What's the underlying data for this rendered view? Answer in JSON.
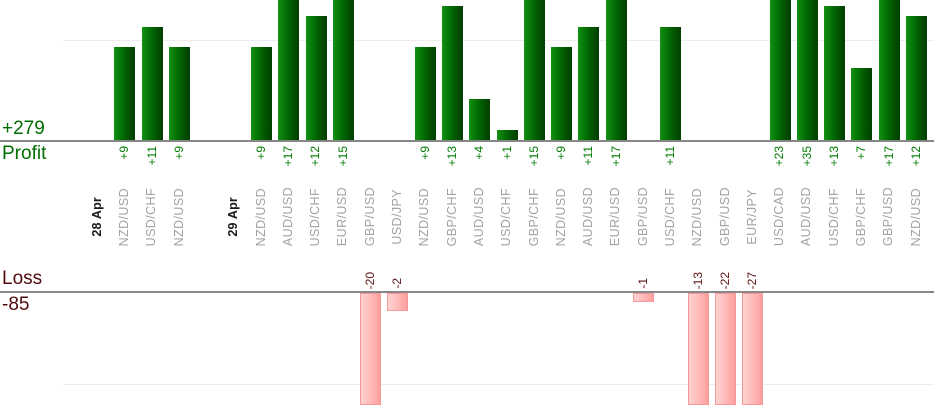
{
  "chart_data": {
    "type": "bar",
    "description": "Daily trade profit/loss bar chart with green profit bars above a zero axis and pink loss bars below a separate loss axis",
    "profit": {
      "label": "Profit",
      "total_label": "+279",
      "total": 279,
      "axis_color": "#878787",
      "bar_color": "#047204",
      "value_color": "#007d00",
      "gridline_value": 10
    },
    "loss": {
      "label": "Loss",
      "total_label": "-85",
      "total": -85,
      "axis_color": "#878787",
      "bar_color": "#ffb0b0",
      "value_color": "#5d1313",
      "gridline_value": -10
    },
    "grid": true,
    "legend": "none",
    "colors": {
      "profit_text": "#006e00",
      "loss_text": "#4f0c0c",
      "symbol_label": "#a2a2a2",
      "date_label": "#1a1a1a",
      "gridline": "#ededed"
    },
    "slots": [
      {
        "kind": "date",
        "label": "28 Apr",
        "value": null
      },
      {
        "kind": "trade",
        "label": "NZD/USD",
        "value": 9
      },
      {
        "kind": "trade",
        "label": "USD/CHF",
        "value": 11
      },
      {
        "kind": "trade",
        "label": "NZD/USD",
        "value": 9
      },
      {
        "kind": "empty",
        "label": "",
        "value": null
      },
      {
        "kind": "date",
        "label": "29 Apr",
        "value": null
      },
      {
        "kind": "trade",
        "label": "NZD/USD",
        "value": 9
      },
      {
        "kind": "trade",
        "label": "AUD/USD",
        "value": 17
      },
      {
        "kind": "trade",
        "label": "USD/CHF",
        "value": 12
      },
      {
        "kind": "trade",
        "label": "EUR/USD",
        "value": 15
      },
      {
        "kind": "trade",
        "label": "GBP/USD",
        "value": -20
      },
      {
        "kind": "trade",
        "label": "USD/JPY",
        "value": -2
      },
      {
        "kind": "trade",
        "label": "NZD/USD",
        "value": 9
      },
      {
        "kind": "trade",
        "label": "GBP/CHF",
        "value": 13
      },
      {
        "kind": "trade",
        "label": "AUD/USD",
        "value": 4
      },
      {
        "kind": "trade",
        "label": "USD/CHF",
        "value": 1
      },
      {
        "kind": "trade",
        "label": "GBP/CHF",
        "value": 15
      },
      {
        "kind": "trade",
        "label": "NZD/USD",
        "value": 9
      },
      {
        "kind": "trade",
        "label": "AUD/USD",
        "value": 11
      },
      {
        "kind": "trade",
        "label": "EUR/USD",
        "value": 17
      },
      {
        "kind": "trade",
        "label": "GBP/USD",
        "value": -1
      },
      {
        "kind": "trade",
        "label": "USD/CHF",
        "value": 11
      },
      {
        "kind": "trade",
        "label": "NZD/USD",
        "value": -13
      },
      {
        "kind": "trade",
        "label": "GBP/USD",
        "value": -22
      },
      {
        "kind": "trade",
        "label": "EUR/JPY",
        "value": -27
      },
      {
        "kind": "trade",
        "label": "USD/CAD",
        "value": 23
      },
      {
        "kind": "trade",
        "label": "AUD/USD",
        "value": 35
      },
      {
        "kind": "trade",
        "label": "USD/CHF",
        "value": 13
      },
      {
        "kind": "trade",
        "label": "GBP/CHF",
        "value": 7
      },
      {
        "kind": "trade",
        "label": "GBP/USD",
        "value": 17
      },
      {
        "kind": "trade",
        "label": "NZD/USD",
        "value": 12
      }
    ]
  }
}
